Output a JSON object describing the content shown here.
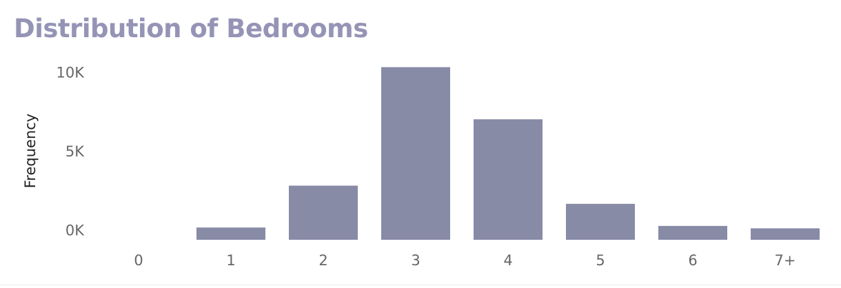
{
  "chart_data": {
    "type": "bar",
    "title": "Distribution of Bedrooms",
    "xlabel": "",
    "ylabel": "Frequency",
    "categories": [
      "0",
      "1",
      "2",
      "3",
      "4",
      "5",
      "6",
      "7+"
    ],
    "values": [
      0,
      150,
      2800,
      10300,
      7000,
      1650,
      250,
      100
    ],
    "ylim": [
      -800,
      10800
    ],
    "yticks": [
      {
        "value": 0,
        "label": "0K"
      },
      {
        "value": 5000,
        "label": "5K"
      },
      {
        "value": 10000,
        "label": "10K"
      }
    ],
    "grid": false,
    "legend": "none",
    "bar_color": "#888ba6",
    "title_color": "#9594b6"
  }
}
